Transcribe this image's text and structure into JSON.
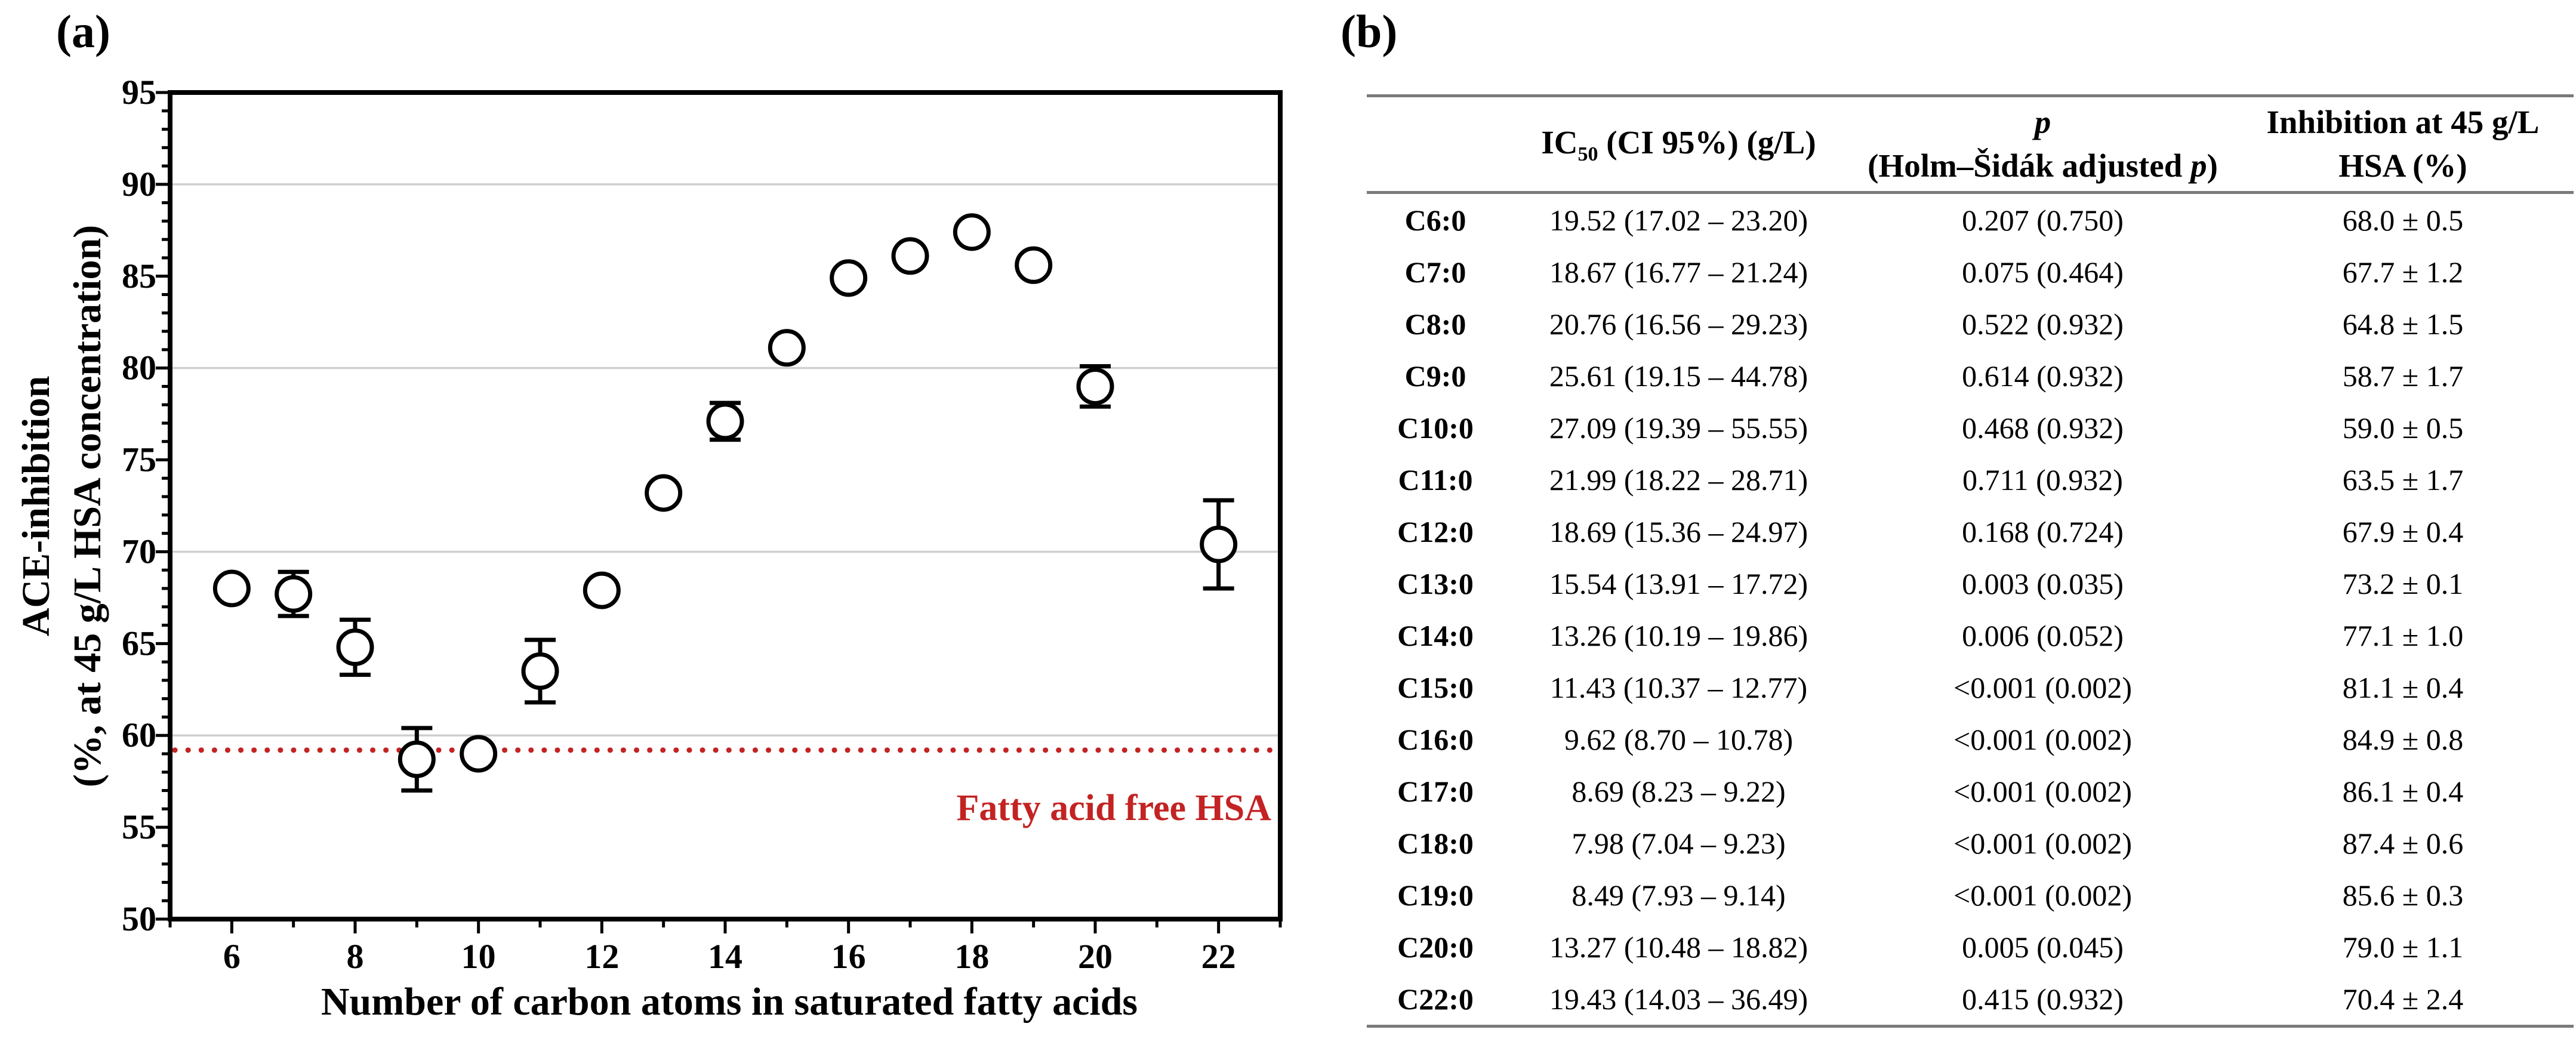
{
  "figure": {
    "background": "#ffffff"
  },
  "panel_a": {
    "label": "(a)"
  },
  "panel_b": {
    "label": "(b)",
    "table_header": {
      "ic50": {
        "pre": "IC",
        "sub": "50",
        "post": " (CI 95%) (g/L)"
      },
      "p": {
        "line1": "p",
        "line2_pre": "(Holm–Šidák adjusted ",
        "line2_italic": "p",
        "line2_post": ")"
      },
      "inhibition": {
        "line1": "Inhibition at 45 g/L",
        "line2": "HSA (%)"
      }
    }
  },
  "chart_data": [
    {
      "type": "scatter",
      "panel": "a",
      "title": "",
      "xlabel": "Number of carbon atoms in saturated fatty acids",
      "ylabel_line1": "ACE-inhibition",
      "ylabel_line2": "(%, at 45 g/L HSA concentration)",
      "x": [
        6,
        7,
        8,
        9,
        10,
        11,
        12,
        13,
        14,
        15,
        16,
        17,
        18,
        19,
        20,
        22
      ],
      "y": [
        68.0,
        67.7,
        64.8,
        58.7,
        59.0,
        63.5,
        67.9,
        73.2,
        77.1,
        81.1,
        84.9,
        86.1,
        87.4,
        85.6,
        79.0,
        70.4
      ],
      "yerr": [
        0.5,
        1.2,
        1.5,
        1.7,
        0.5,
        1.7,
        0.4,
        0.1,
        1.0,
        0.4,
        0.8,
        0.4,
        0.6,
        0.3,
        1.1,
        2.4
      ],
      "xlim": [
        5,
        23
      ],
      "ylim": [
        50,
        95
      ],
      "x_major_ticks": [
        6,
        8,
        10,
        12,
        14,
        16,
        18,
        20,
        22
      ],
      "x_minor_step": 1,
      "y_major_step": 5,
      "y_minor_step": 1,
      "gridlines_y": [
        60,
        70,
        80,
        90
      ],
      "grid_on": true,
      "legend": "none",
      "marker": "open-circle",
      "reference_line": {
        "value": 59.2,
        "label": "Fatty acid free HSA",
        "style": "dotted"
      },
      "colors": {
        "marker": "#000000",
        "axis": "#000000",
        "grid": "#cfcfcf",
        "reference": "#c32323"
      }
    },
    {
      "type": "table",
      "panel": "b",
      "columns": [
        "",
        "IC50 (CI 95%) (g/L)",
        "p (Holm–Šidák adjusted p)",
        "Inhibition at 45 g/L HSA (%)"
      ],
      "rows": [
        [
          "C6:0",
          "19.52 (17.02 – 23.20)",
          "0.207 (0.750)",
          "68.0 ± 0.5"
        ],
        [
          "C7:0",
          "18.67 (16.77 – 21.24)",
          "0.075 (0.464)",
          "67.7 ± 1.2"
        ],
        [
          "C8:0",
          "20.76 (16.56 – 29.23)",
          "0.522 (0.932)",
          "64.8 ± 1.5"
        ],
        [
          "C9:0",
          "25.61 (19.15 – 44.78)",
          "0.614 (0.932)",
          "58.7 ± 1.7"
        ],
        [
          "C10:0",
          "27.09 (19.39 – 55.55)",
          "0.468 (0.932)",
          "59.0 ± 0.5"
        ],
        [
          "C11:0",
          "21.99 (18.22 – 28.71)",
          "0.711 (0.932)",
          "63.5 ± 1.7"
        ],
        [
          "C12:0",
          "18.69 (15.36 – 24.97)",
          "0.168 (0.724)",
          "67.9 ± 0.4"
        ],
        [
          "C13:0",
          "15.54 (13.91 – 17.72)",
          "0.003 (0.035)",
          "73.2 ± 0.1"
        ],
        [
          "C14:0",
          "13.26 (10.19 – 19.86)",
          "0.006 (0.052)",
          "77.1 ± 1.0"
        ],
        [
          "C15:0",
          "11.43 (10.37 – 12.77)",
          "<0.001 (0.002)",
          "81.1 ± 0.4"
        ],
        [
          "C16:0",
          "9.62 (8.70 – 10.78)",
          "<0.001 (0.002)",
          "84.9 ± 0.8"
        ],
        [
          "C17:0",
          "8.69 (8.23 – 9.22)",
          "<0.001 (0.002)",
          "86.1 ± 0.4"
        ],
        [
          "C18:0",
          "7.98 (7.04 – 9.23)",
          "<0.001 (0.002)",
          "87.4 ± 0.6"
        ],
        [
          "C19:0",
          "8.49 (7.93 – 9.14)",
          "<0.001 (0.002)",
          "85.6 ± 0.3"
        ],
        [
          "C20:0",
          "13.27 (10.48 – 18.82)",
          "0.005 (0.045)",
          "79.0 ± 1.1"
        ],
        [
          "C22:0",
          "19.43 (14.03 – 36.49)",
          "0.415 (0.932)",
          "70.4 ± 2.4"
        ]
      ]
    }
  ]
}
